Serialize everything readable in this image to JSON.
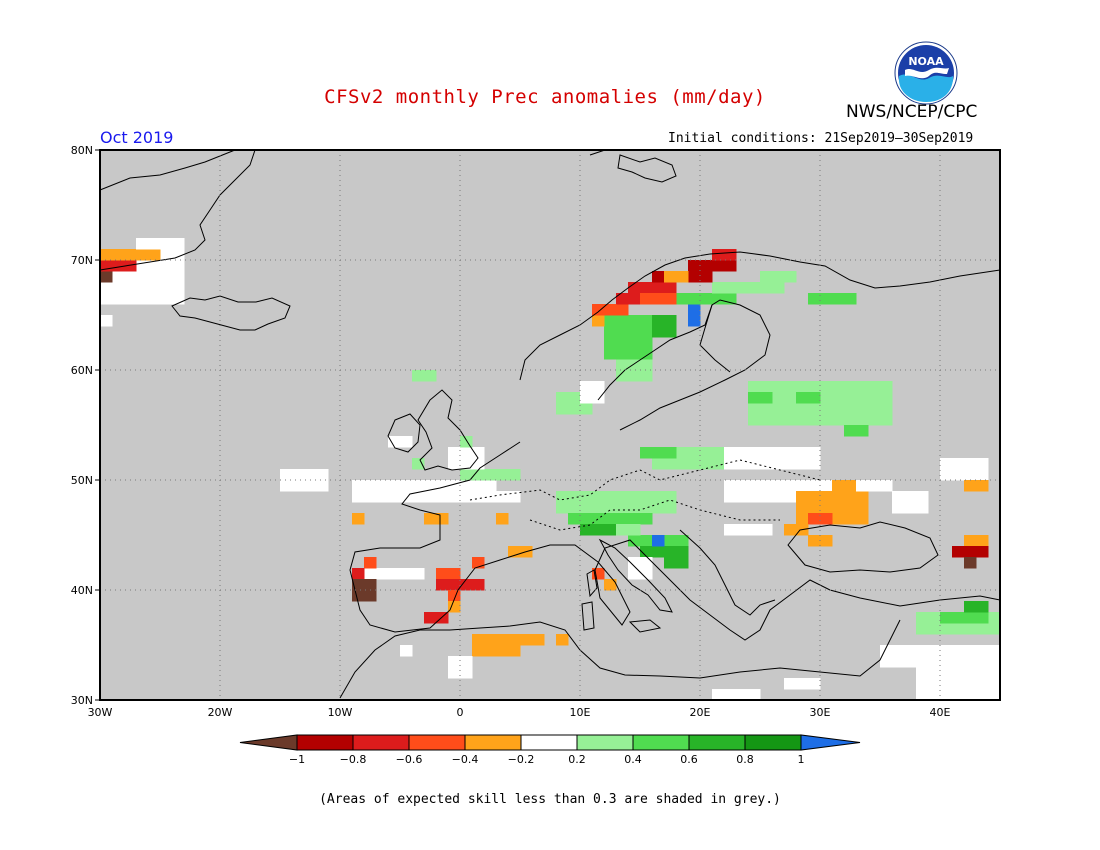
{
  "header": {
    "title": "CFSv2 monthly Prec anomalies (mm/day)",
    "agency": "NWS/NCEP/CPC",
    "logo_text": "NOAA",
    "period": "Oct 2019",
    "initial_conditions": "Initial conditions: 21Sep2019–30Sep2019"
  },
  "map": {
    "lon_ticks": [
      "30W",
      "20W",
      "10W",
      "0",
      "10E",
      "20E",
      "30E",
      "40E"
    ],
    "lat_ticks": [
      "80N",
      "70N",
      "60N",
      "50N",
      "40N",
      "30N"
    ],
    "lon_range": [
      -30,
      45
    ],
    "lat_range": [
      30,
      80
    ],
    "background_grey": "#c8c8c8"
  },
  "legend": {
    "labels": [
      "−1",
      "−0.8",
      "−0.6",
      "−0.4",
      "−0.2",
      "0.2",
      "0.4",
      "0.6",
      "0.8",
      "1"
    ],
    "colors": {
      "lt_m1": "#6b3a2a",
      "m1_m08": "#b30000",
      "m08_m06": "#dd1c1c",
      "m06_m04": "#ff4d1a",
      "m04_m02": "#ffa31a",
      "m02_02": "#ffffff",
      "p02_04": "#96f096",
      "p04_06": "#50dc50",
      "p06_08": "#28b428",
      "p08_1": "#149614",
      "gt_1": "#1e6ee6"
    }
  },
  "footnote": "(Areas of expected skill less than 0.3 are shaded in grey.)"
}
